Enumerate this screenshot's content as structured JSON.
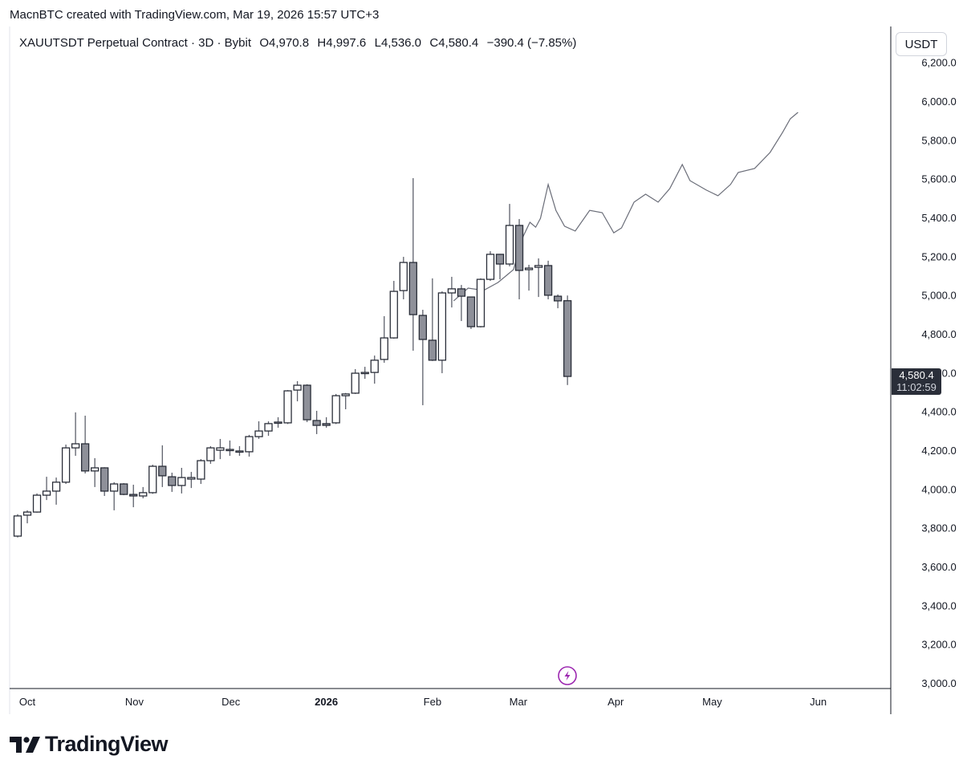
{
  "credit": "MacnBTC created with TradingView.com, Mar 19, 2026 15:57 UTC+3",
  "legend": {
    "symbol": "XAUUTSDT Perpetual Contract · 3D · Bybit",
    "open": "O4,970.8",
    "high": "H4,997.6",
    "low": "L4,536.0",
    "close": "C4,580.4",
    "change": "−390.4 (−7.85%)"
  },
  "unit": "USDT",
  "last_price": {
    "price": "4,580.4",
    "countdown": "11:02:59"
  },
  "logo_text": "TradingView",
  "colors": {
    "bull_body": "#ffffff",
    "bear_body": "#8e9099",
    "outline": "#2a2e39",
    "wick": "#5d606b",
    "projection": "#6a6d78",
    "accent": "#9c27b0",
    "tag_bg": "#2a2e39"
  },
  "chart_data": {
    "type": "candlestick",
    "interval": "3D",
    "ylim": [
      3000,
      6200
    ],
    "yticks": [
      "6,200.0",
      "6,000.0",
      "5,800.0",
      "5,600.0",
      "5,400.0",
      "5,200.0",
      "5,000.0",
      "4,800.0",
      "4,600.0",
      "4,400.0",
      "4,200.0",
      "4,000.0",
      "3,800.0",
      "3,600.0",
      "3,400.0",
      "3,200.0",
      "3,000.0"
    ],
    "ytick_values": [
      6200,
      6000,
      5800,
      5600,
      5400,
      5200,
      5000,
      4800,
      4600,
      4400,
      4200,
      4000,
      3800,
      3600,
      3400,
      3200,
      3000
    ],
    "xticks": [
      {
        "label": "Oct",
        "bar": 1,
        "bold": false
      },
      {
        "label": "Nov",
        "bar": 12.1,
        "bold": false
      },
      {
        "label": "Dec",
        "bar": 22.1,
        "bold": false
      },
      {
        "label": "2026",
        "bar": 32.0,
        "bold": true
      },
      {
        "label": "Feb",
        "bar": 43.0,
        "bold": false
      },
      {
        "label": "Mar",
        "bar": 51.9,
        "bold": false
      },
      {
        "label": "Apr",
        "bar": 62.0,
        "bold": false
      },
      {
        "label": "May",
        "bar": 72.0,
        "bold": false
      },
      {
        "label": "Jun",
        "bar": 83.0,
        "bold": false
      }
    ],
    "candles": [
      [
        3757,
        3870,
        3750,
        3861
      ],
      [
        3865,
        3890,
        3823,
        3881
      ],
      [
        3881,
        3977,
        3878,
        3968
      ],
      [
        3968,
        4063,
        3943,
        3989
      ],
      [
        3989,
        4059,
        3919,
        4035
      ],
      [
        4035,
        4229,
        4026,
        4212
      ],
      [
        4212,
        4395,
        4171,
        4233
      ],
      [
        4233,
        4378,
        4080,
        4093
      ],
      [
        4093,
        4159,
        4010,
        4109
      ],
      [
        4109,
        4112,
        3964,
        3989
      ],
      [
        3989,
        4035,
        3890,
        4026
      ],
      [
        4026,
        4030,
        3968,
        3972
      ],
      [
        3972,
        4022,
        3906,
        3964
      ],
      [
        3964,
        4010,
        3952,
        3981
      ],
      [
        3981,
        4125,
        3975,
        4117
      ],
      [
        4117,
        4225,
        4010,
        4068
      ],
      [
        4063,
        4084,
        3985,
        4018
      ],
      [
        4018,
        4109,
        3977,
        4059
      ],
      [
        4051,
        4088,
        4005,
        4059
      ],
      [
        4051,
        4154,
        4026,
        4146
      ],
      [
        4146,
        4221,
        4130,
        4212
      ],
      [
        4200,
        4258,
        4154,
        4212
      ],
      [
        4200,
        4250,
        4171,
        4204
      ],
      [
        4192,
        4221,
        4171,
        4196
      ],
      [
        4192,
        4279,
        4167,
        4270
      ],
      [
        4270,
        4349,
        4258,
        4299
      ],
      [
        4299,
        4349,
        4274,
        4337
      ],
      [
        4341,
        4370,
        4316,
        4345
      ],
      [
        4341,
        4510,
        4335,
        4506
      ],
      [
        4510,
        4556,
        4452,
        4535
      ],
      [
        4535,
        4540,
        4345,
        4357
      ],
      [
        4353,
        4403,
        4283,
        4328
      ],
      [
        4337,
        4370,
        4316,
        4328
      ],
      [
        4341,
        4490,
        4335,
        4481
      ],
      [
        4481,
        4495,
        4411,
        4490
      ],
      [
        4494,
        4618,
        4490,
        4597
      ],
      [
        4597,
        4630,
        4568,
        4601
      ],
      [
        4601,
        4688,
        4543,
        4664
      ],
      [
        4668,
        4891,
        4651,
        4779
      ],
      [
        4779,
        5073,
        4775,
        5019
      ],
      [
        5023,
        5197,
        4978,
        5168
      ],
      [
        5168,
        5603,
        4713,
        4899
      ],
      [
        4895,
        4924,
        4432,
        4771
      ],
      [
        4767,
        5086,
        4660,
        4664
      ],
      [
        4664,
        5019,
        4597,
        5011
      ],
      [
        5011,
        5094,
        4936,
        5032
      ],
      [
        5032,
        5052,
        4866,
        4994
      ],
      [
        4990,
        4992,
        4825,
        4837
      ],
      [
        4837,
        5086,
        4833,
        5081
      ],
      [
        5081,
        5226,
        5073,
        5210
      ],
      [
        5210,
        5212,
        5081,
        5160
      ],
      [
        5160,
        5470,
        5148,
        5359
      ],
      [
        5359,
        5392,
        4978,
        5127
      ],
      [
        5131,
        5156,
        5023,
        5139
      ],
      [
        5143,
        5189,
        4990,
        5152
      ],
      [
        5152,
        5177,
        4978,
        4999
      ],
      [
        4994,
        5003,
        4932,
        4970
      ],
      [
        4970.8,
        4997.6,
        4536.0,
        4580.4
      ]
    ],
    "projection": [
      [
        45.2,
        4970
      ],
      [
        46.7,
        5036
      ],
      [
        48.3,
        5024
      ],
      [
        49.8,
        5065
      ],
      [
        51.4,
        5131
      ],
      [
        52.4,
        5301
      ],
      [
        53.1,
        5375
      ],
      [
        53.7,
        5350
      ],
      [
        54.2,
        5396
      ],
      [
        55.0,
        5570
      ],
      [
        55.8,
        5437
      ],
      [
        56.7,
        5355
      ],
      [
        57.8,
        5330
      ],
      [
        59.3,
        5437
      ],
      [
        60.6,
        5425
      ],
      [
        61.8,
        5321
      ],
      [
        62.6,
        5346
      ],
      [
        63.9,
        5479
      ],
      [
        65.1,
        5520
      ],
      [
        66.4,
        5479
      ],
      [
        67.6,
        5549
      ],
      [
        68.9,
        5673
      ],
      [
        69.7,
        5590
      ],
      [
        71.4,
        5541
      ],
      [
        72.6,
        5512
      ],
      [
        73.9,
        5570
      ],
      [
        74.7,
        5632
      ],
      [
        76.4,
        5653
      ],
      [
        78.0,
        5735
      ],
      [
        79.3,
        5839
      ],
      [
        80.1,
        5909
      ],
      [
        80.9,
        5942
      ]
    ]
  }
}
